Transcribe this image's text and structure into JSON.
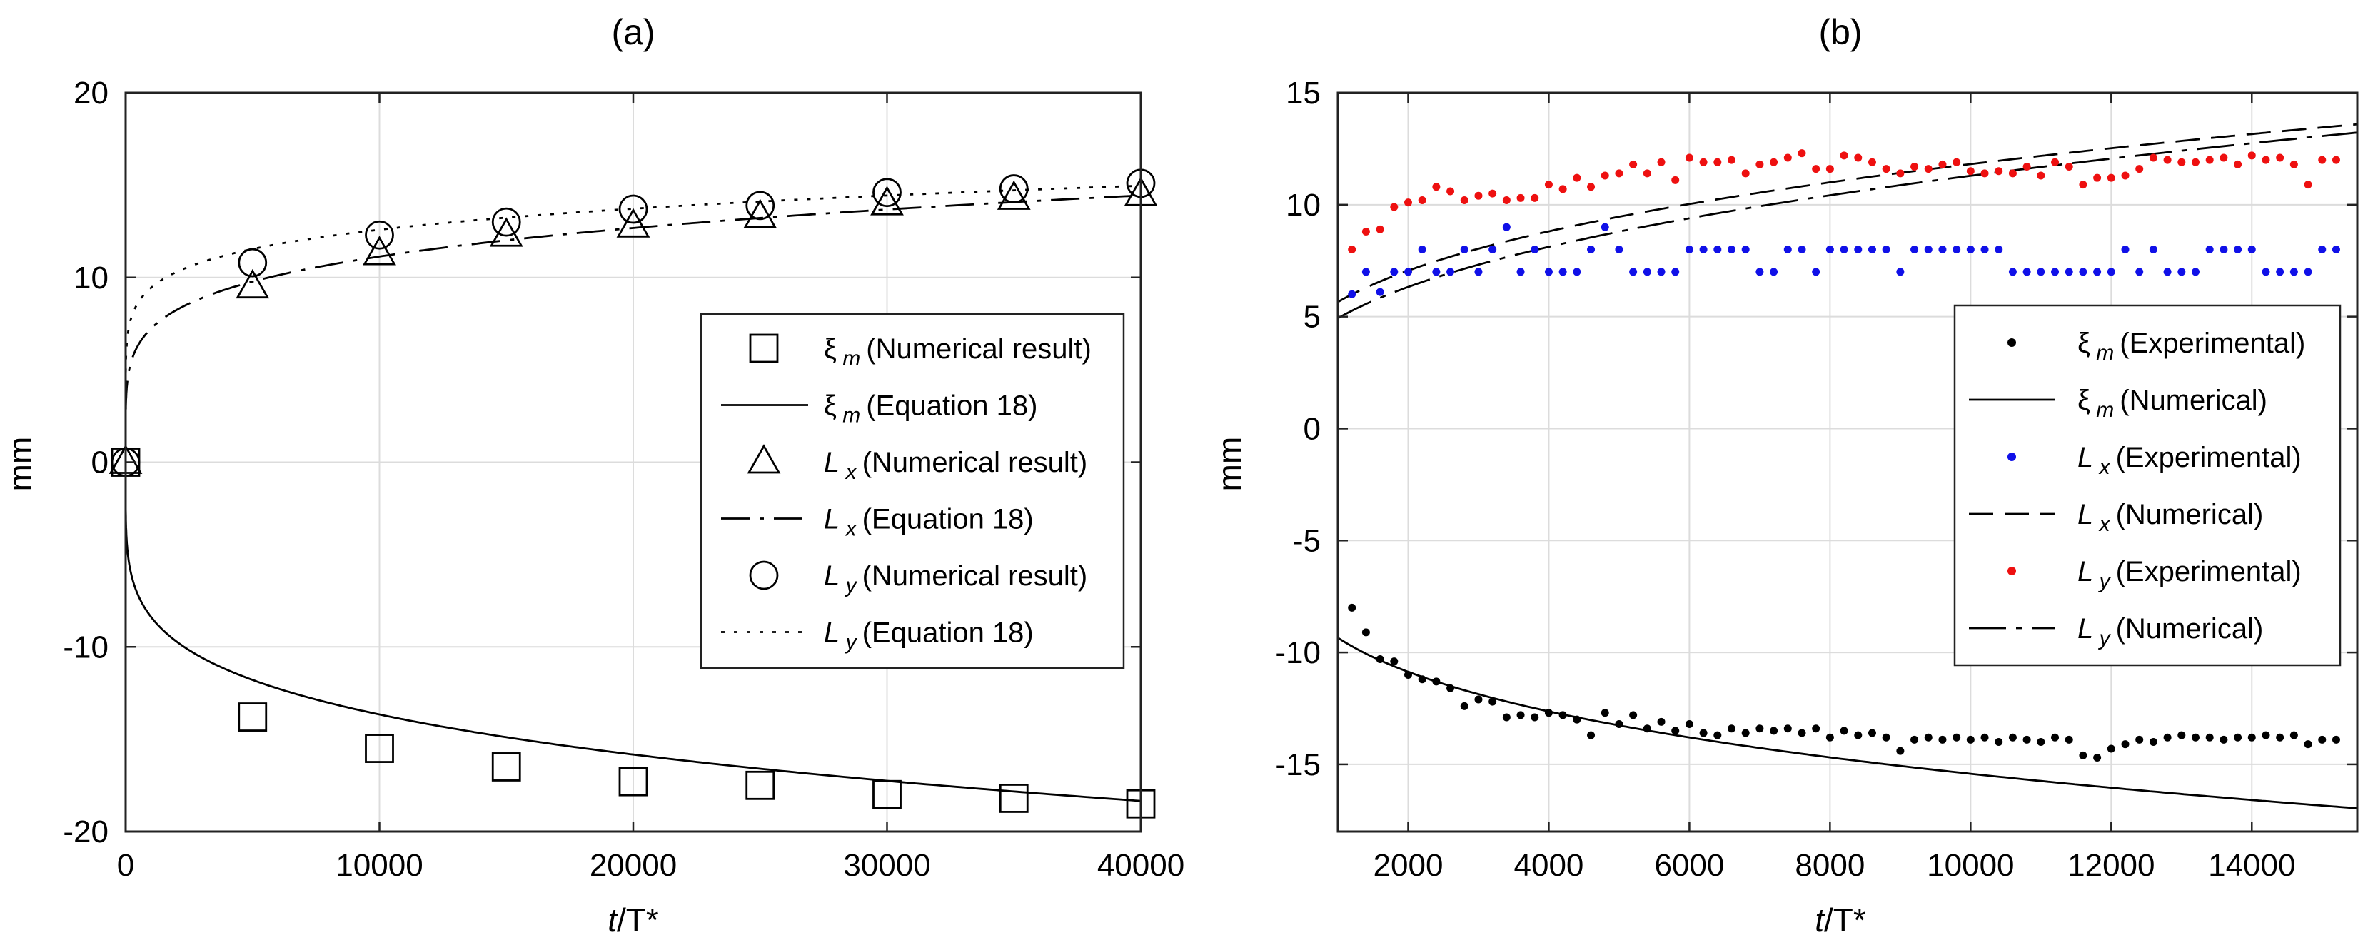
{
  "chart_data": [
    {
      "panel_label": "(a)",
      "type": "line",
      "title": "",
      "xlabel_var": "t",
      "xlabel_rest": "/T*",
      "ylabel": "mm",
      "xlim": [
        0,
        40000
      ],
      "ylim": [
        -20,
        20
      ],
      "x_ticks": [
        0,
        10000,
        20000,
        30000,
        40000
      ],
      "y_ticks": [
        -20,
        -10,
        0,
        10,
        20
      ],
      "grid": true,
      "legend_position": "center-right",
      "series": [
        {
          "name": "xi_m_numerical",
          "legend_sym": "ξ",
          "legend_sub": "m",
          "legend_text": "(Numerical result)",
          "marker": "square",
          "x": [
            0,
            5000,
            10000,
            15000,
            20000,
            25000,
            30000,
            35000,
            40000
          ],
          "y": [
            0,
            -13.8,
            -15.5,
            -16.5,
            -17.3,
            -17.5,
            -18.0,
            -18.2,
            -18.5
          ]
        },
        {
          "name": "xi_m_equation",
          "legend_sym": "ξ",
          "legend_sub": "m",
          "legend_text": "(Equation 18)",
          "line": "solid",
          "formula": "-1.93*x^0.2125 with x in T* units"
        },
        {
          "name": "Lx_numerical",
          "legend_sym": "L",
          "legend_sub": "x",
          "legend_text": "(Numerical result)",
          "marker": "triangle",
          "x": [
            0,
            5000,
            10000,
            15000,
            20000,
            25000,
            30000,
            35000,
            40000
          ],
          "y": [
            0,
            9.5,
            11.3,
            12.3,
            12.8,
            13.3,
            14.0,
            14.3,
            14.5
          ]
        },
        {
          "name": "Lx_equation",
          "legend_sym": "L",
          "legend_sub": "x",
          "legend_text": "(Equation 18)",
          "line": "dashdot",
          "formula": "1.98*x^0.1875"
        },
        {
          "name": "Ly_numerical",
          "legend_sym": "L",
          "legend_sub": "y",
          "legend_text": "(Numerical result)",
          "marker": "circle",
          "x": [
            0,
            5000,
            10000,
            15000,
            20000,
            25000,
            30000,
            35000,
            40000
          ],
          "y": [
            0,
            10.8,
            12.3,
            13.0,
            13.7,
            13.9,
            14.6,
            14.8,
            15.1
          ]
        },
        {
          "name": "Ly_equation",
          "legend_sym": "L",
          "legend_sub": "y",
          "legend_text": "(Equation 18)",
          "line": "dotted",
          "formula": "3.98*x^0.125"
        }
      ]
    },
    {
      "panel_label": "(b)",
      "type": "scatter",
      "title": "",
      "xlabel_var": "t",
      "xlabel_rest": "/T*",
      "ylabel": "mm",
      "xlim": [
        1000,
        15500
      ],
      "ylim": [
        -18,
        15
      ],
      "x_ticks": [
        2000,
        4000,
        6000,
        8000,
        10000,
        12000,
        14000
      ],
      "y_ticks": [
        -15,
        -10,
        -5,
        0,
        5,
        10,
        15
      ],
      "grid": true,
      "legend_position": "right",
      "series": [
        {
          "name": "xi_m_experimental",
          "legend_sym": "ξ",
          "legend_sub": "m",
          "legend_text": "(Experimental)",
          "marker": "dot",
          "color": "#000000",
          "x": [
            1200,
            1400,
            1600,
            1800,
            2000,
            2200,
            2400,
            2600,
            2800,
            3000,
            3200,
            3400,
            3600,
            3800,
            4000,
            4200,
            4400,
            4600,
            4800,
            5000,
            5200,
            5400,
            5600,
            5800,
            6000,
            6200,
            6400,
            6600,
            6800,
            7000,
            7200,
            7400,
            7600,
            7800,
            8000,
            8200,
            8400,
            8600,
            8800,
            9000,
            9200,
            9400,
            9600,
            9800,
            10000,
            10200,
            10400,
            10600,
            10800,
            11000,
            11200,
            11400,
            11600,
            11800,
            12000,
            12200,
            12400,
            12600,
            12800,
            13000,
            13200,
            13400,
            13600,
            13800,
            14000,
            14200,
            14400,
            14600,
            14800,
            15000,
            15200
          ],
          "y": [
            -8.0,
            -9.1,
            -10.3,
            -10.4,
            -11.0,
            -11.2,
            -11.3,
            -11.6,
            -12.4,
            -12.1,
            -12.2,
            -12.9,
            -12.8,
            -12.9,
            -12.7,
            -12.8,
            -13.0,
            -13.7,
            -12.7,
            -13.2,
            -12.8,
            -13.4,
            -13.1,
            -13.5,
            -13.2,
            -13.6,
            -13.7,
            -13.4,
            -13.6,
            -13.4,
            -13.5,
            -13.4,
            -13.6,
            -13.4,
            -13.8,
            -13.5,
            -13.7,
            -13.6,
            -13.8,
            -14.4,
            -13.9,
            -13.8,
            -13.9,
            -13.8,
            -13.9,
            -13.8,
            -14.0,
            -13.8,
            -13.9,
            -14.0,
            -13.8,
            -13.9,
            -14.6,
            -14.7,
            -14.3,
            -14.1,
            -13.9,
            -14.0,
            -13.8,
            -13.7,
            -13.8,
            -13.8,
            -13.9,
            -13.8,
            -13.8,
            -13.7,
            -13.8,
            -13.7,
            -14.1,
            -13.9,
            -13.9
          ]
        },
        {
          "name": "xi_m_numerical",
          "legend_sym": "ξ",
          "legend_sub": "m",
          "legend_text": "(Numerical)",
          "line": "solid",
          "formula": "-2.08*x^0.2175"
        },
        {
          "name": "Lx_experimental",
          "legend_sym": "L",
          "legend_sub": "x",
          "legend_text": "(Experimental)",
          "marker": "dot",
          "color": "#1010e8",
          "x": [
            1200,
            1400,
            1600,
            1800,
            2000,
            2200,
            2400,
            2600,
            2800,
            3000,
            3200,
            3400,
            3600,
            3800,
            4000,
            4200,
            4400,
            4600,
            4800,
            5000,
            5200,
            5400,
            5600,
            5800,
            6000,
            6200,
            6400,
            6600,
            6800,
            7000,
            7200,
            7400,
            7600,
            7800,
            8000,
            8200,
            8400,
            8600,
            8800,
            9000,
            9200,
            9400,
            9600,
            9800,
            10000,
            10200,
            10400,
            10600,
            10800,
            11000,
            11200,
            11400,
            11600,
            11800,
            12000,
            12200,
            12400,
            12600,
            12800,
            13000,
            13200,
            13400,
            13600,
            13800,
            14000,
            14200,
            14400,
            14600,
            14800,
            15000,
            15200
          ],
          "y": [
            6.0,
            7.0,
            6.1,
            7.0,
            7.0,
            8.0,
            7.0,
            7.0,
            8.0,
            7.0,
            8.0,
            9.0,
            7.0,
            8.0,
            7.0,
            7.0,
            7.0,
            8.0,
            9.0,
            8.0,
            7.0,
            7.0,
            7.0,
            7.0,
            8.0,
            8.0,
            8.0,
            8.0,
            8.0,
            7.0,
            7.0,
            8.0,
            8.0,
            7.0,
            8.0,
            8.0,
            8.0,
            8.0,
            8.0,
            7.0,
            8.0,
            8.0,
            8.0,
            8.0,
            8.0,
            8.0,
            8.0,
            7.0,
            7.0,
            7.0,
            7.0,
            7.0,
            7.0,
            7.0,
            7.0,
            8.0,
            7.0,
            8.0,
            7.0,
            7.0,
            7.0,
            8.0,
            8.0,
            8.0,
            8.0,
            7.0,
            7.0,
            7.0,
            7.0,
            8.0,
            8.0
          ]
        },
        {
          "name": "Lx_numerical",
          "legend_sym": "L",
          "legend_sub": "x",
          "legend_text": "(Numerical)",
          "line": "dashed",
          "formula": "0.62*x^0.32"
        },
        {
          "name": "Ly_experimental",
          "legend_sym": "L",
          "legend_sub": "y",
          "legend_text": "(Experimental)",
          "marker": "dot",
          "color": "#ee1010",
          "x": [
            1200,
            1400,
            1600,
            1800,
            2000,
            2200,
            2400,
            2600,
            2800,
            3000,
            3200,
            3400,
            3600,
            3800,
            4000,
            4200,
            4400,
            4600,
            4800,
            5000,
            5200,
            5400,
            5600,
            5800,
            6000,
            6200,
            6400,
            6600,
            6800,
            7000,
            7200,
            7400,
            7600,
            7800,
            8000,
            8200,
            8400,
            8600,
            8800,
            9000,
            9200,
            9400,
            9600,
            9800,
            10000,
            10200,
            10400,
            10600,
            10800,
            11000,
            11200,
            11400,
            11600,
            11800,
            12000,
            12200,
            12400,
            12600,
            12800,
            13000,
            13200,
            13400,
            13600,
            13800,
            14000,
            14200,
            14400,
            14600,
            14800,
            15000,
            15200
          ],
          "y": [
            8.0,
            8.8,
            8.9,
            9.9,
            10.1,
            10.2,
            10.8,
            10.6,
            10.2,
            10.4,
            10.5,
            10.2,
            10.3,
            10.3,
            10.9,
            10.7,
            11.2,
            10.8,
            11.3,
            11.4,
            11.8,
            11.4,
            11.9,
            11.1,
            12.1,
            11.9,
            11.9,
            12.0,
            11.4,
            11.8,
            11.9,
            12.1,
            12.3,
            11.6,
            11.6,
            12.2,
            12.1,
            11.9,
            11.6,
            11.4,
            11.7,
            11.6,
            11.8,
            11.9,
            11.5,
            11.4,
            11.5,
            11.4,
            11.7,
            11.3,
            11.9,
            11.7,
            10.9,
            11.2,
            11.2,
            11.3,
            11.6,
            12.1,
            12.0,
            11.9,
            11.9,
            12.0,
            12.1,
            11.8,
            12.2,
            12.0,
            12.1,
            11.8,
            10.9,
            12.0,
            12.0
          ]
        },
        {
          "name": "Ly_numerical",
          "legend_sym": "L",
          "legend_sub": "y",
          "legend_text": "(Numerical)",
          "line": "longdashdot",
          "formula": "0.41*x^0.36"
        }
      ]
    }
  ]
}
